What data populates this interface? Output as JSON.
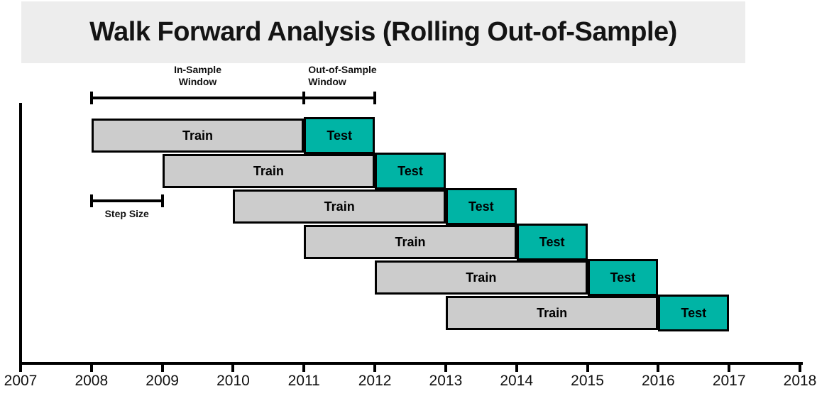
{
  "title": "Walk Forward Analysis (Rolling Out-of-Sample)",
  "colors": {
    "banner_bg": "#ededed",
    "train_fill": "#cccccc",
    "test_fill": "#00b4a5",
    "bar_border": "#000000",
    "axis": "#000000"
  },
  "annotations": {
    "in_sample": {
      "label": "In-Sample\nWindow",
      "from_year": 2008,
      "to_year": 2011
    },
    "out_of_sample": {
      "label": "Out-of-Sample\nWindow",
      "from_year": 2011,
      "to_year": 2012
    },
    "step_size": {
      "label": "Step Size",
      "from_year": 2008,
      "to_year": 2009
    }
  },
  "chart_data": {
    "type": "bar",
    "subtype": "walk-forward-windows",
    "title": "Walk Forward Analysis (Rolling Out-of-Sample)",
    "xlabel": "",
    "ylabel": "",
    "xlim": [
      2007,
      2018
    ],
    "x_ticks": [
      2007,
      2008,
      2009,
      2010,
      2011,
      2012,
      2013,
      2014,
      2015,
      2016,
      2017,
      2018
    ],
    "grid": false,
    "legend": false,
    "segment_labels": {
      "train": "Train",
      "test": "Test"
    },
    "windows": [
      {
        "train_start": 2008,
        "train_end": 2011,
        "test_start": 2011,
        "test_end": 2012
      },
      {
        "train_start": 2009,
        "train_end": 2012,
        "test_start": 2012,
        "test_end": 2013
      },
      {
        "train_start": 2010,
        "train_end": 2013,
        "test_start": 2013,
        "test_end": 2014
      },
      {
        "train_start": 2011,
        "train_end": 2014,
        "test_start": 2014,
        "test_end": 2015
      },
      {
        "train_start": 2012,
        "train_end": 2015,
        "test_start": 2015,
        "test_end": 2016
      },
      {
        "train_start": 2013,
        "train_end": 2016,
        "test_start": 2016,
        "test_end": 2017
      }
    ]
  }
}
